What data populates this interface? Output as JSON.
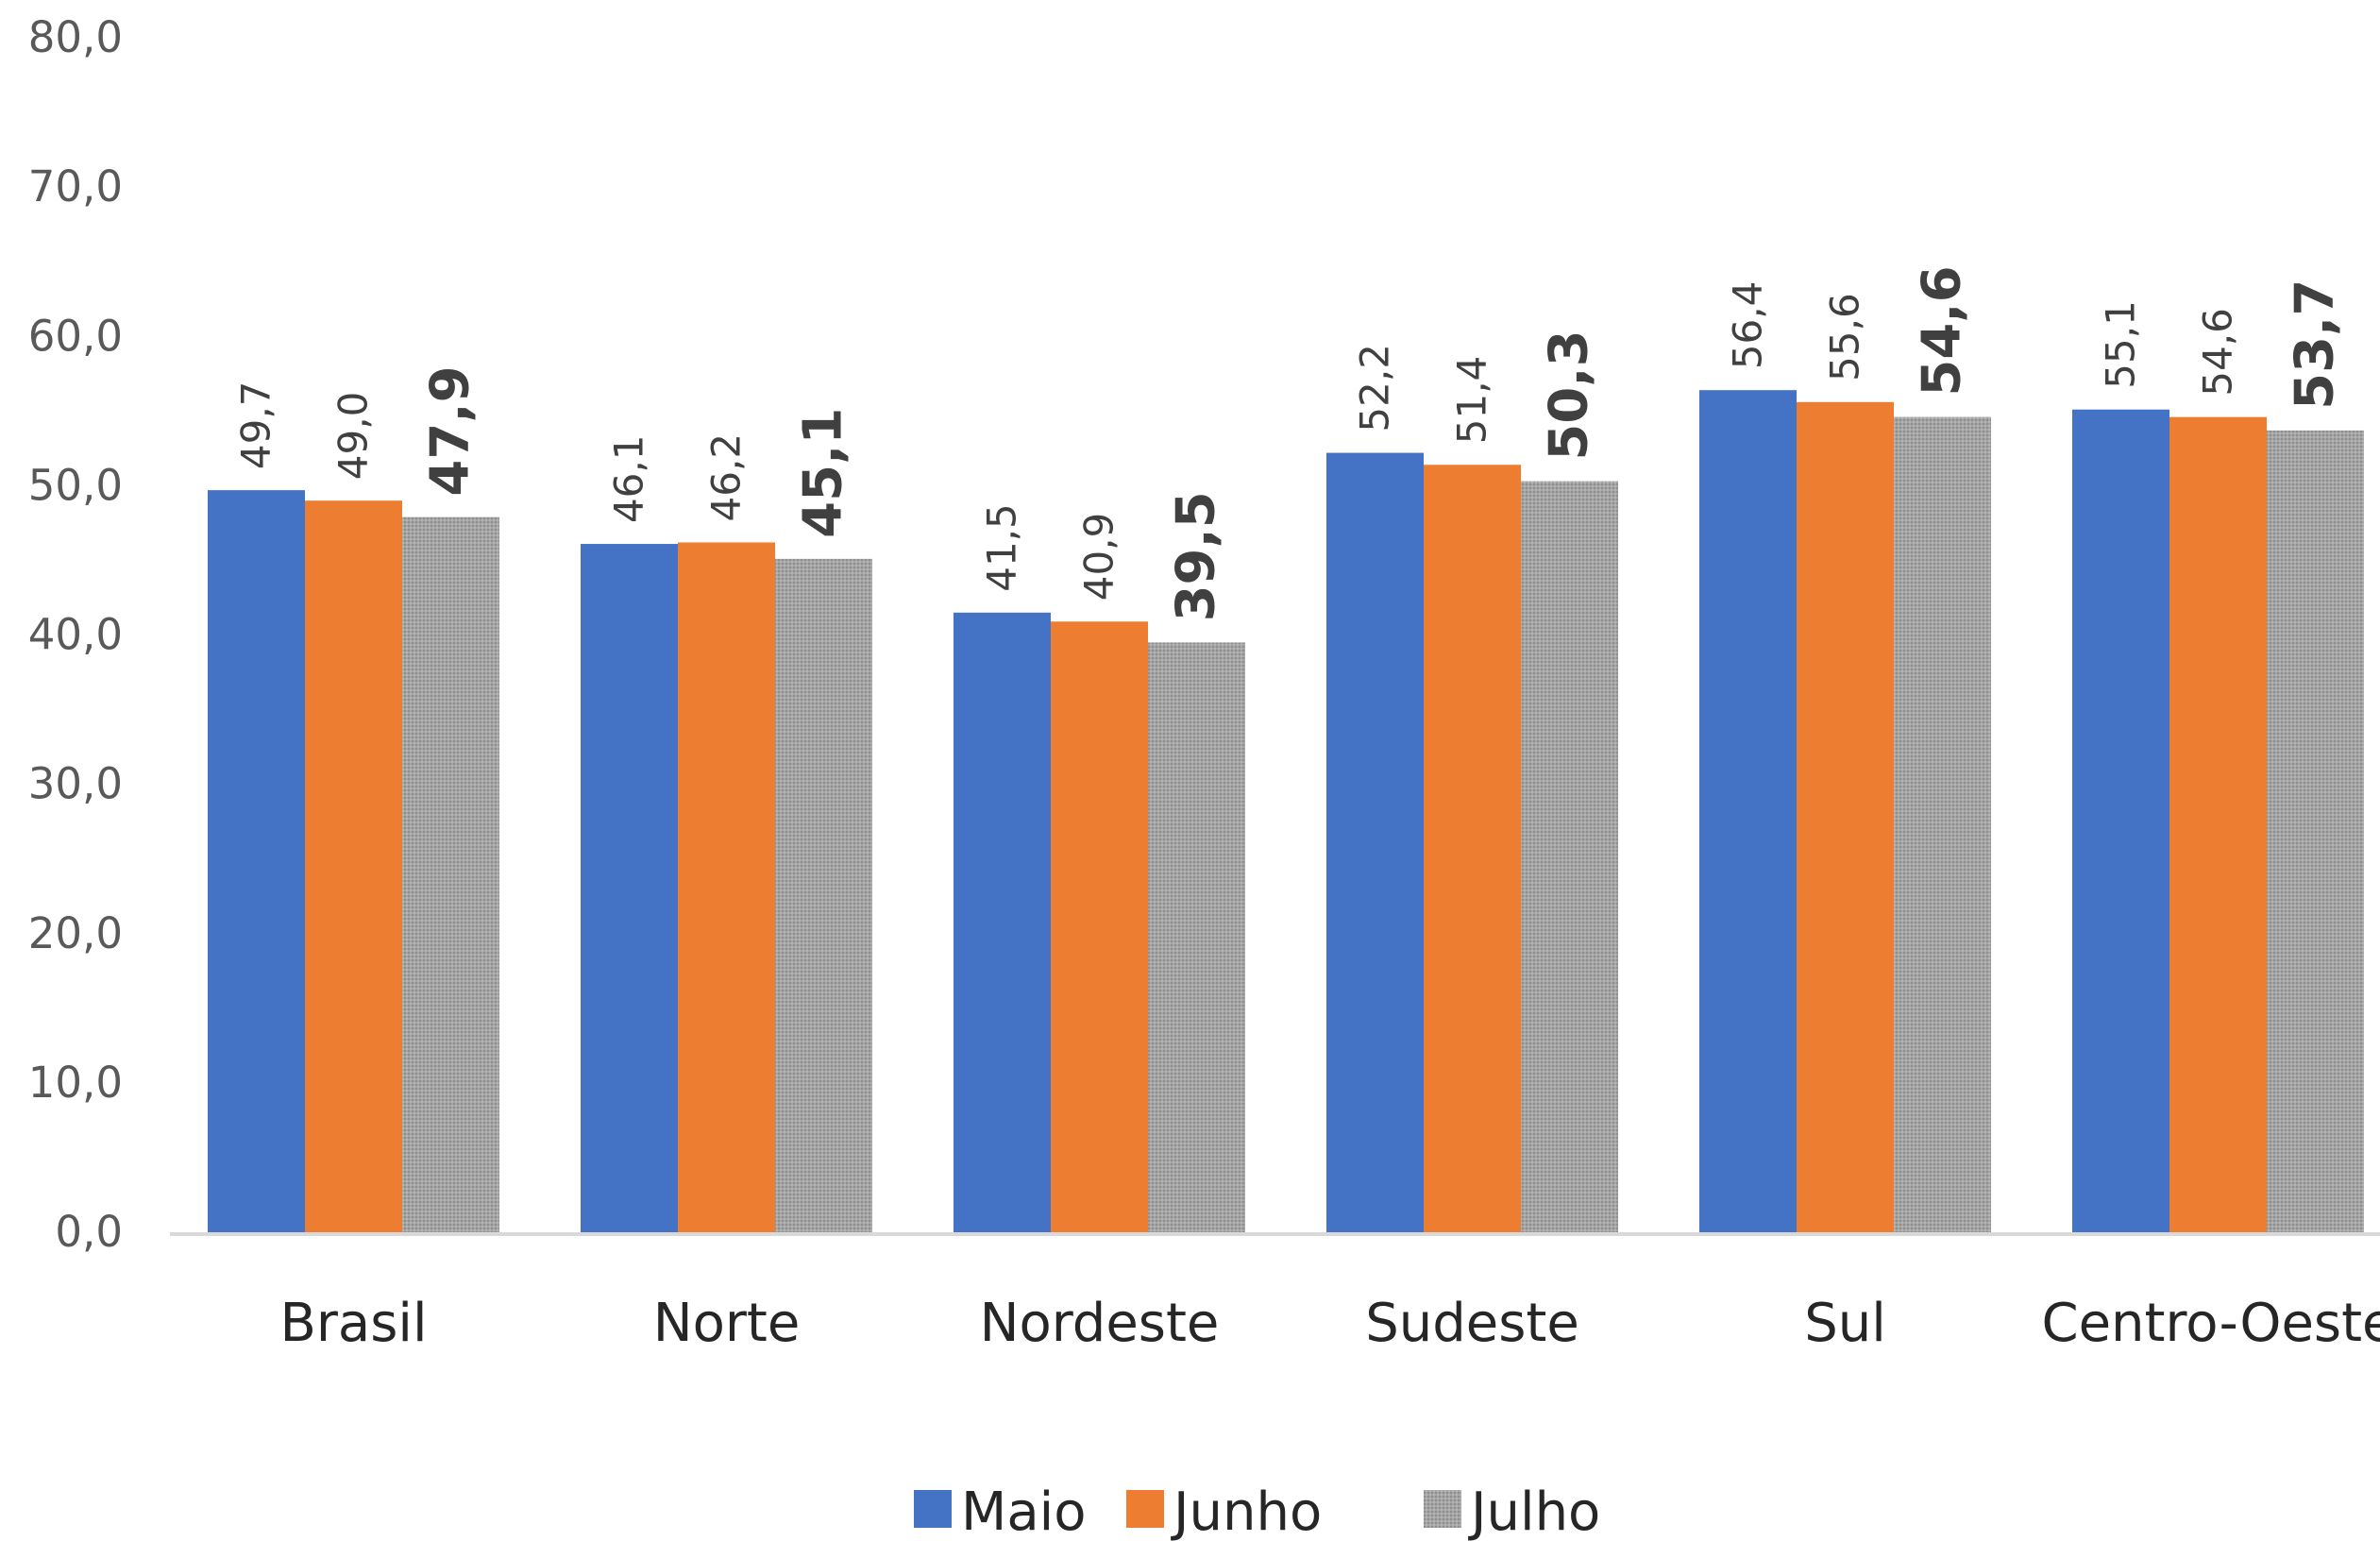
{
  "chart_data": {
    "type": "bar",
    "categories": [
      "Brasil",
      "Norte",
      "Nordeste",
      "Sudeste",
      "Sul",
      "Centro-Oeste"
    ],
    "series": [
      {
        "name": "Maio",
        "color": "#4472C4",
        "values": [
          49.7,
          46.1,
          41.5,
          52.2,
          56.4,
          55.1
        ],
        "labels": [
          "49,7",
          "46,1",
          "41,5",
          "52,2",
          "56,4",
          "55,1"
        ],
        "emphasis": false
      },
      {
        "name": "Junho",
        "color": "#ED7D31",
        "values": [
          49.0,
          46.2,
          40.9,
          51.4,
          55.6,
          54.6
        ],
        "labels": [
          "49,0",
          "46,2",
          "40,9",
          "51,4",
          "55,6",
          "54,6"
        ],
        "emphasis": false
      },
      {
        "name": "Julho",
        "color": "#A5A5A5",
        "values": [
          47.9,
          45.1,
          39.5,
          50.3,
          54.6,
          53.7
        ],
        "labels": [
          "47,9",
          "45,1",
          "39,5",
          "50,3",
          "54,6",
          "53,7"
        ],
        "emphasis": true
      }
    ],
    "y_ticks": [
      "0,0",
      "10,0",
      "20,0",
      "30,0",
      "40,0",
      "50,0",
      "60,0",
      "70,0",
      "80,0"
    ],
    "ylim": [
      0,
      80
    ],
    "title": "",
    "xlabel": "",
    "ylabel": "",
    "grid": false,
    "legend_position": "bottom"
  }
}
